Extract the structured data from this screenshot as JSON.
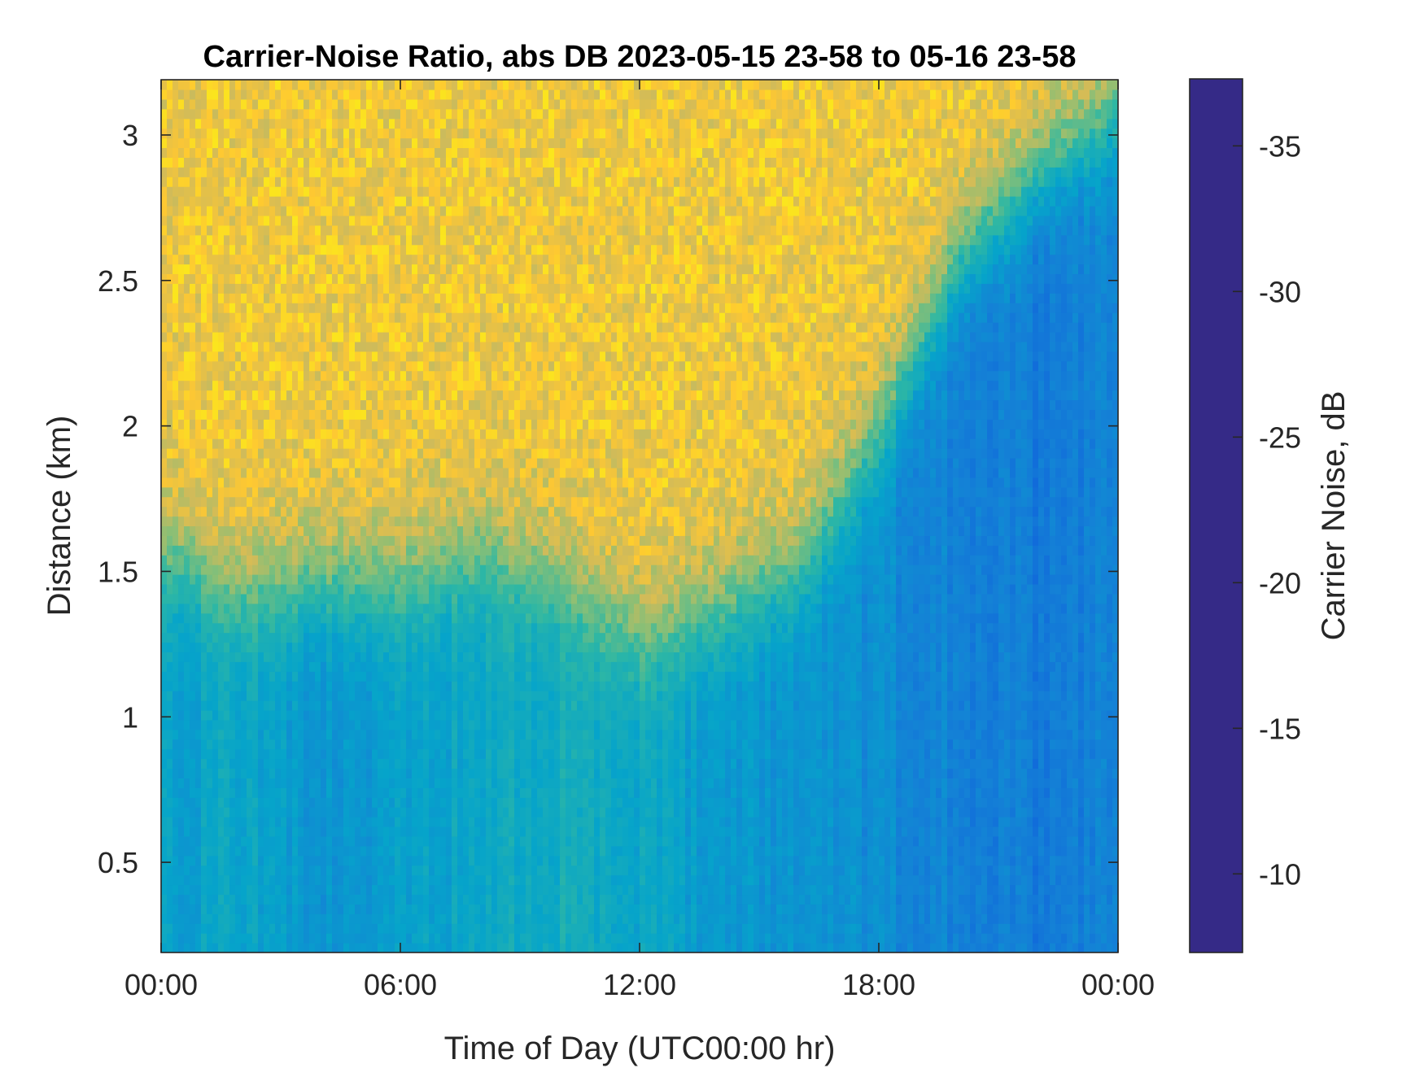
{
  "chart_data": {
    "type": "heatmap",
    "title": "Carrier-Noise Ratio, abs DB 2023-05-15 23-58 to 05-16 23-58",
    "xlabel": "Time of Day (UTC00:00 hr)",
    "ylabel": "Distance (km)",
    "colorbar_label": "Carrier Noise, dB",
    "x_ticks": [
      "00:00",
      "06:00",
      "12:00",
      "18:00",
      "00:00"
    ],
    "x_tick_values_hr": [
      0,
      6,
      12,
      18,
      24
    ],
    "xlim_hr": [
      0,
      24
    ],
    "y_ticks": [
      "0.5",
      "1",
      "1.5",
      "2",
      "2.5",
      "3"
    ],
    "y_tick_values_km": [
      0.5,
      1,
      1.5,
      2,
      2.5,
      3
    ],
    "ylim_km": [
      0.19,
      3.19
    ],
    "colorbar_ticks": [
      "-10",
      "-15",
      "-20",
      "-25",
      "-30",
      "-35"
    ],
    "colorbar_tick_values": [
      -10,
      -15,
      -20,
      -25,
      -30,
      -35
    ],
    "clim": [
      -37.3,
      -7.3
    ],
    "colormap": "parula",
    "colormap_reversed": true,
    "grid": false,
    "colorbar_position": "right",
    "color_stops": [
      "#352a87",
      "#0f5cdd",
      "#1481d6",
      "#06a4ca",
      "#2eb7a4",
      "#87bf77",
      "#d1bb59",
      "#fec832",
      "#f9fb0e"
    ],
    "field_summary": [
      {
        "time_hr": 0,
        "upper_boundary_km": 1.6,
        "lower_db": -18
      },
      {
        "time_hr": 2,
        "upper_boundary_km": 1.45,
        "lower_db": -19
      },
      {
        "time_hr": 4,
        "upper_boundary_km": 1.5,
        "lower_db": -17
      },
      {
        "time_hr": 6,
        "upper_boundary_km": 1.5,
        "lower_db": -18
      },
      {
        "time_hr": 8,
        "upper_boundary_km": 1.6,
        "lower_db": -19
      },
      {
        "time_hr": 10,
        "upper_boundary_km": 1.5,
        "lower_db": -20
      },
      {
        "time_hr": 12,
        "upper_boundary_km": 1.3,
        "lower_db": -19
      },
      {
        "time_hr": 14,
        "upper_boundary_km": 1.4,
        "lower_db": -17
      },
      {
        "time_hr": 16,
        "upper_boundary_km": 1.55,
        "lower_db": -17
      },
      {
        "time_hr": 18,
        "upper_boundary_km": 2.0,
        "lower_db": -16
      },
      {
        "time_hr": 20,
        "upper_boundary_km": 2.6,
        "lower_db": -15
      },
      {
        "time_hr": 22,
        "upper_boundary_km": 2.9,
        "lower_db": -14
      },
      {
        "time_hr": 24,
        "upper_boundary_km": 3.1,
        "lower_db": -15
      }
    ]
  }
}
